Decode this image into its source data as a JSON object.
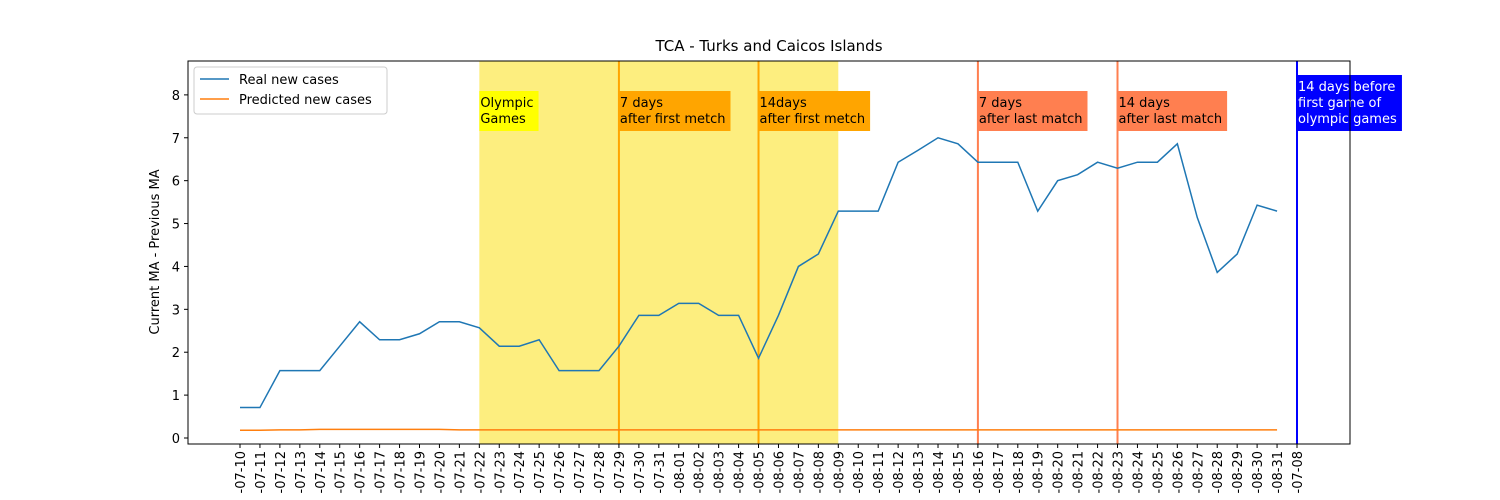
{
  "chart_data": {
    "type": "line",
    "title": "TCA - Turks and Caicos Islands",
    "y_label": "Current MA - Previous MA",
    "categories": [
      "-07-10",
      "-07-11",
      "-07-12",
      "-07-13",
      "-07-14",
      "-07-15",
      "-07-16",
      "-07-17",
      "-07-18",
      "-07-19",
      "-07-20",
      "-07-21",
      "-07-22",
      "-07-23",
      "-07-24",
      "-07-25",
      "-07-26",
      "-07-27",
      "-07-28",
      "-07-29",
      "-07-30",
      "-07-31",
      "-08-01",
      "-08-02",
      "-08-03",
      "-08-04",
      "-08-05",
      "-08-06",
      "-08-07",
      "-08-08",
      "-08-09",
      "-08-10",
      "-08-11",
      "-08-12",
      "-08-13",
      "-08-14",
      "-08-15",
      "-08-16",
      "-08-17",
      "-08-18",
      "-08-19",
      "-08-20",
      "-08-21",
      "-08-22",
      "-08-23",
      "-08-24",
      "-08-25",
      "-08-26",
      "-08-27",
      "-08-28",
      "-08-29",
      "-08-30",
      "-08-31",
      "-07-08"
    ],
    "series": [
      {
        "name": "Real new cases",
        "color": "#1f77b4",
        "values": [
          0.71,
          0.71,
          1.57,
          1.57,
          1.57,
          2.14,
          2.71,
          2.29,
          2.29,
          2.43,
          2.71,
          2.71,
          2.57,
          2.14,
          2.14,
          2.29,
          1.57,
          1.57,
          1.57,
          2.14,
          2.86,
          2.86,
          3.14,
          3.14,
          2.86,
          2.86,
          1.86,
          2.86,
          4.0,
          4.29,
          5.29,
          5.29,
          5.29,
          6.43,
          6.71,
          7.0,
          6.86,
          6.43,
          6.43,
          6.43,
          5.29,
          6.0,
          6.14,
          6.43,
          6.29,
          6.43,
          6.43,
          6.86,
          5.14,
          3.86,
          4.29,
          5.43,
          5.29,
          null
        ]
      },
      {
        "name": "Predicted new cases",
        "color": "#ff7f0e",
        "values": [
          0.18,
          0.18,
          0.19,
          0.19,
          0.2,
          0.2,
          0.2,
          0.2,
          0.2,
          0.2,
          0.2,
          0.19,
          0.19,
          0.19,
          0.19,
          0.19,
          0.19,
          0.19,
          0.19,
          0.19,
          0.19,
          0.19,
          0.19,
          0.19,
          0.19,
          0.19,
          0.19,
          0.19,
          0.19,
          0.19,
          0.19,
          0.19,
          0.19,
          0.19,
          0.19,
          0.19,
          0.19,
          0.19,
          0.19,
          0.19,
          0.19,
          0.19,
          0.19,
          0.19,
          0.19,
          0.19,
          0.19,
          0.19,
          0.19,
          0.19,
          0.19,
          0.19,
          0.19,
          null
        ]
      }
    ],
    "ylim": [
      -0.14,
      8.79
    ],
    "yticks": [
      0,
      1,
      2,
      3,
      4,
      5,
      6,
      7,
      8
    ],
    "legend": "upper left",
    "span": {
      "x": [
        "-07-22",
        "-08-09"
      ],
      "color": "#fdee7f"
    },
    "annotations": [
      {
        "x": "-07-22",
        "text": [
          "Olympic",
          "Games"
        ],
        "box_color": "#ffff00",
        "text_color": "#000000"
      },
      {
        "x": "-07-29",
        "text": [
          "7 days",
          "after first metch"
        ],
        "box_color": "#ffa500",
        "text_color": "#000000",
        "line_color": "#ffa500"
      },
      {
        "x": "-08-05",
        "text": [
          "14days",
          "after first metch"
        ],
        "box_color": "#ffa500",
        "text_color": "#000000",
        "line_color": "#ffa500"
      },
      {
        "x": "-08-16",
        "text": [
          "7 days",
          "after last match"
        ],
        "box_color": "#ff7f50",
        "text_color": "#000000",
        "line_color": "#ff7f50"
      },
      {
        "x": "-08-23",
        "text": [
          "14 days",
          "after last match"
        ],
        "box_color": "#ff7f50",
        "text_color": "#000000",
        "line_color": "#ff7f50"
      },
      {
        "x": "-07-08",
        "text": [
          "14 days before",
          "first game of",
          "olympic games"
        ],
        "box_color": "#0000ff",
        "text_color": "#ffffff",
        "line_color": "#0000ff"
      }
    ]
  }
}
